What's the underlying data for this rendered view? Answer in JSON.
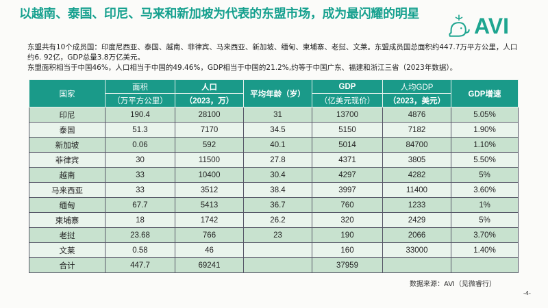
{
  "title": "以越南、泰国、印尼、马来和新加坡为代表的东盟市场，成为最闪耀的明星",
  "logo": {
    "text": "AVI",
    "icon": "whale-icon",
    "brand_color": "#1ea590"
  },
  "intro": {
    "line1": "东盟共有10个成员国：印度尼西亚、泰国、越南、菲律宾、马来西亚、新加坡、缅甸、柬埔寨、老挝、文莱。东盟成员国总面积约447.7万平方公里，人口约6. 92亿，GDP总量3.8万亿美元。",
    "line2": "东盟面积相当于中国46%，人口相当于中国的49.46%，GDP相当于中国的21.2%,约等于中国广东、福建和浙江三省（2023年数据）。"
  },
  "table": {
    "header": {
      "country": "国家",
      "area": "面积",
      "area_unit": "（万平方公里）",
      "population": "人口",
      "population_unit": "（2023，万）",
      "age": "平均年龄（岁）",
      "gdp": "GDP",
      "gdp_unit": "（亿美元现价）",
      "gdp_per": "人均GDP",
      "gdp_per_unit": "（2023，美元）",
      "growth": "GDP增速"
    },
    "rows": [
      [
        "印尼",
        "190.4",
        "28100",
        "31",
        "13700",
        "4876",
        "5.05%"
      ],
      [
        "泰国",
        "51.3",
        "7170",
        "34.5",
        "5150",
        "7182",
        "1.90%"
      ],
      [
        "新加坡",
        "0.06",
        "592",
        "40.1",
        "5014",
        "84700",
        "1.10%"
      ],
      [
        "菲律宾",
        "30",
        "11500",
        "27.8",
        "4371",
        "3805",
        "5.50%"
      ],
      [
        "越南",
        "33",
        "10400",
        "30.4",
        "4297",
        "4282",
        "5%"
      ],
      [
        "马来西亚",
        "33",
        "3512",
        "38.4",
        "3997",
        "11400",
        "3.60%"
      ],
      [
        "缅甸",
        "67.7",
        "5413",
        "36.7",
        "760",
        "1233",
        "1%"
      ],
      [
        "柬埔寨",
        "18",
        "1742",
        "26.2",
        "320",
        "2429",
        "5%"
      ],
      [
        "老挝",
        "23.68",
        "766",
        "23",
        "190",
        "2066",
        "3.70%"
      ],
      [
        "文莱",
        "0.58",
        "46",
        "",
        "160",
        "33000",
        "1.40%"
      ],
      [
        "合计",
        "447.7",
        "69241",
        "",
        "37959",
        "",
        ""
      ]
    ]
  },
  "source": "数据来源：AVI（见微睿行）",
  "page_number": "-4-"
}
